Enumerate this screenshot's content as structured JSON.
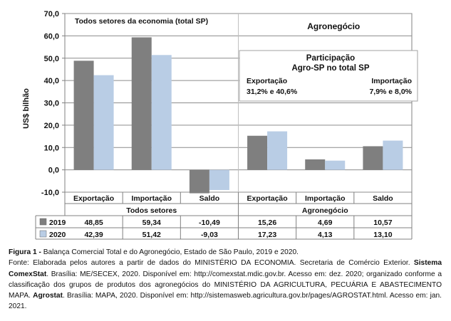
{
  "chart_data": {
    "type": "bar",
    "ylabel": "US$ bilhão",
    "ylim": [
      -10,
      70
    ],
    "yticks": [
      "70,0",
      "60,0",
      "50,0",
      "40,0",
      "30,0",
      "20,0",
      "10,0",
      "0,0",
      "-10,0"
    ],
    "grid": true,
    "groups": [
      "Todos setores",
      "Agronegócio"
    ],
    "group_titles": [
      "Todos setores da economia (total SP)",
      "Agronegócio"
    ],
    "categories": [
      "Exportação",
      "Importação",
      "Saldo",
      "Exportação",
      "Importação",
      "Saldo"
    ],
    "series": [
      {
        "name": "2019",
        "color": "#7f7f7f",
        "values": [
          48.85,
          59.34,
          -10.49,
          15.26,
          4.69,
          10.57
        ],
        "labels": [
          "48,85",
          "59,34",
          "-10,49",
          "15,26",
          "4,69",
          "10,57"
        ]
      },
      {
        "name": "2020",
        "color": "#b9cde5",
        "values": [
          42.39,
          51.42,
          -9.03,
          17.23,
          4.13,
          13.1
        ],
        "labels": [
          "42,39",
          "51,42",
          "-9,03",
          "17,23",
          "4,13",
          "13,10"
        ]
      }
    ],
    "annotation": {
      "title_line1": "Participação",
      "title_line2": "Agro-SP no total SP",
      "left_label": "Exportação",
      "left_value": "31,2% e 40,6%",
      "right_label": "Importação",
      "right_value": "7,9% e 8,0%"
    }
  },
  "caption": {
    "figure_label": "Figura 1 -",
    "figure_title": " Balança Comercial Total e do Agronegócio, Estado de São Paulo, 2019 e 2020.",
    "source_1": "Fonte: Elaborada pelos autores a partir de dados do MINISTÉRIO DA ECONOMIA. Secretaria de Comércio Exterior. ",
    "source_sistema": "Sistema ComexStat",
    "source_2": ". Brasília: ME/SECEX, 2020. Disponível em: http://comexstat.mdic.gov.br. Acesso em: dez. 2020; organizado conforme a classificação dos grupos de produtos dos agronegócios do MINISTÉRIO DA AGRICULTURA, PECUÁRIA E ABASTECIMENTO MAPA. ",
    "source_agrostat": "Agrostat",
    "source_3": ". Brasília: MAPA, 2020. Disponível em: http://sistemasweb.agricultura.gov.br/pages/AGROSTAT.html. Acesso em: jan. 2021."
  }
}
